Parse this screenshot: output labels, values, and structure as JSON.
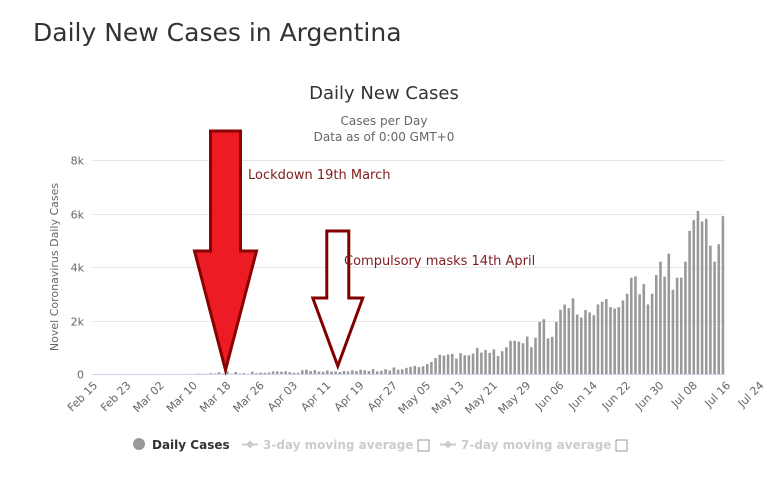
{
  "page": {
    "title": "Daily New Cases in Argentina"
  },
  "chart_data": {
    "type": "bar",
    "title": "Daily New Cases",
    "subtitle_line1": "Cases per Day",
    "subtitle_line2": "Data as of 0:00 GMT+0",
    "ylabel": "Novel Coronavirus Daily Cases",
    "xlabel": "",
    "ylim": [
      0,
      8000
    ],
    "yticks": [
      0,
      2000,
      4000,
      6000,
      8000
    ],
    "ytick_labels": [
      "0",
      "2k",
      "4k",
      "6k",
      "8k"
    ],
    "x_start_date": "2020-02-15",
    "x_end_date": "2020-07-29",
    "xtick_labels": [
      "Feb 15",
      "Feb 23",
      "Mar 02",
      "Mar 10",
      "Mar 18",
      "Mar 26",
      "Apr 03",
      "Apr 11",
      "Apr 19",
      "Apr 27",
      "May 05",
      "May 13",
      "May 21",
      "May 29",
      "Jun 06",
      "Jun 14",
      "Jun 22",
      "Jun 30",
      "Jul 08",
      "Jul 16",
      "Jul 24"
    ],
    "grid": true,
    "bar_color": "#999999",
    "series": [
      {
        "name": "Daily Cases",
        "values": [
          0,
          0,
          0,
          0,
          0,
          0,
          0,
          0,
          0,
          0,
          0,
          0,
          0,
          0,
          0,
          0,
          1,
          0,
          0,
          1,
          2,
          1,
          5,
          3,
          5,
          14,
          12,
          6,
          31,
          17,
          65,
          13,
          100,
          12,
          75,
          18,
          31,
          5,
          84,
          30,
          50,
          43,
          55,
          96,
          98,
          88,
          100,
          67,
          51,
          48,
          140,
          165,
          111,
          145,
          90,
          85,
          132,
          89,
          95,
          74,
          113,
          99,
          135,
          105,
          159,
          140,
          112,
          185,
          100,
          120,
          180,
          130,
          245,
          160,
          175,
          230,
          270,
          300,
          260,
          290,
          375,
          450,
          600,
          720,
          690,
          730,
          750,
          580,
          780,
          700,
          700,
          760,
          980,
          800,
          900,
          790,
          920,
          670,
          850,
          1000,
          1240,
          1240,
          1210,
          1150,
          1400,
          1000,
          1360,
          1950,
          2050,
          1330,
          1390,
          1950,
          2400,
          2600,
          2460,
          2830,
          2220,
          2110,
          2390,
          2300,
          2200,
          2600,
          2700,
          2800,
          2500,
          2450,
          2500,
          2750,
          3000,
          3600,
          3650,
          2980,
          3360,
          2600,
          3000,
          3700,
          4200,
          3640,
          4500,
          3150,
          3600,
          3600,
          4200,
          5350,
          5750,
          6100,
          5700,
          5800,
          4800,
          4200,
          4850,
          5900
        ]
      },
      {
        "name": "3-day moving average",
        "visible": false
      },
      {
        "name": "7-day moving average",
        "visible": false
      }
    ],
    "annotations": [
      {
        "text": "Lockdown 19th March",
        "date": "2020-03-19",
        "color": "#7f1d1d",
        "arrow_fill": "#ed1c24",
        "arrow_stroke": "#8b0000"
      },
      {
        "text": "Compulsory masks 14th April",
        "date": "2020-04-14",
        "color": "#7f1d1d",
        "arrow_fill": "#ffffff",
        "arrow_stroke": "#800000"
      }
    ],
    "legend": {
      "placement": "bottom-center",
      "active_color": "#333333",
      "inactive_color": "#cccccc"
    }
  }
}
